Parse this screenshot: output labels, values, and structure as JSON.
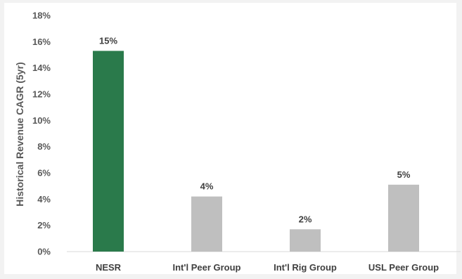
{
  "chart_data": {
    "type": "bar",
    "title": "",
    "xlabel": "",
    "ylabel": "Historical Revenue CAGR (5yr)",
    "categories": [
      "NESR",
      "Int'l Peer Group",
      "Int'l Rig Group",
      "USL Peer Group"
    ],
    "values": [
      15.3,
      4.2,
      1.7,
      5.1
    ],
    "data_labels": [
      "15%",
      "4%",
      "2%",
      "5%"
    ],
    "bar_colors": [
      "#2a7a4b",
      "#bfbfbf",
      "#bfbfbf",
      "#bfbfbf"
    ],
    "ylim": [
      0,
      18
    ],
    "y_ticks": [
      0,
      2,
      4,
      6,
      8,
      10,
      12,
      14,
      16,
      18
    ],
    "y_tick_labels": [
      "0%",
      "2%",
      "4%",
      "6%",
      "8%",
      "10%",
      "12%",
      "14%",
      "16%",
      "18%"
    ],
    "grid": false,
    "legend": "none",
    "colors": {
      "background": "#f2f2f2",
      "plot_background": "#ffffff",
      "axis_line": "#d9d9d9",
      "text": "#404040"
    }
  }
}
